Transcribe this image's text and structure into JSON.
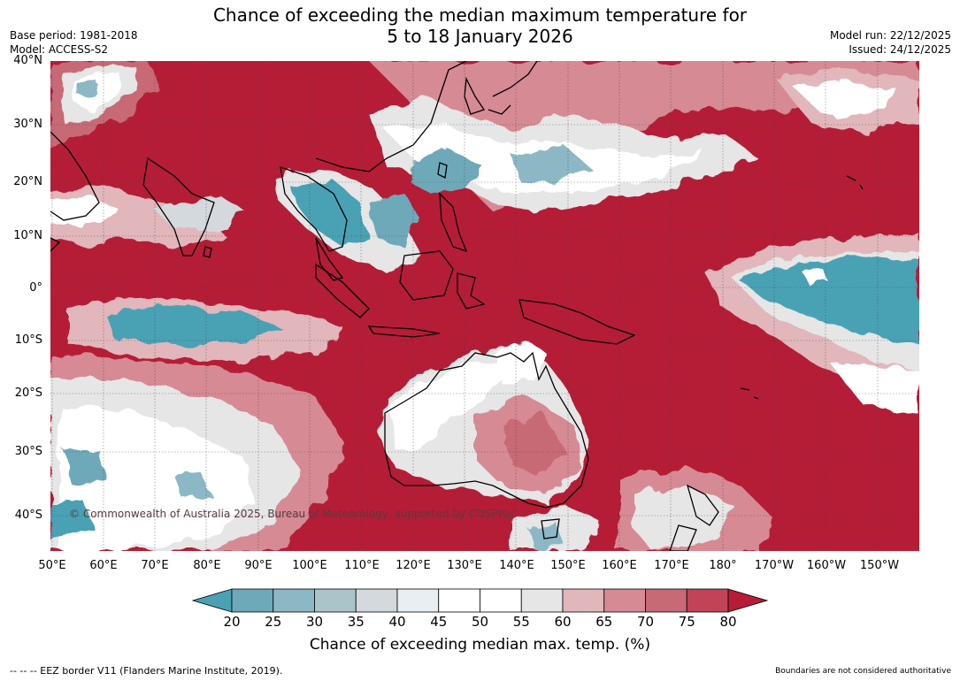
{
  "title_line1": "Chance of exceeding the median maximum temperature for",
  "title_line2": "5 to 18 January 2026",
  "base_period": "Base period: 1981-2018",
  "model": "Model: ACCESS-S2",
  "model_run": "Model run: 22/12/2025",
  "issued": "Issued: 24/12/2025",
  "lat_labels": [
    "40°N",
    "30°N",
    "20°N",
    "10°N",
    "0°",
    "10°S",
    "20°S",
    "30°S",
    "40°S"
  ],
  "lon_labels": [
    "50°E",
    "60°E",
    "70°E",
    "80°E",
    "90°E",
    "100°E",
    "110°E",
    "120°E",
    "130°E",
    "140°E",
    "150°E",
    "160°E",
    "170°E",
    "180°",
    "170°W",
    "160°W",
    "150°W"
  ],
  "copyright": "© Commonwealth of Australia 2025, Bureau of Meteorology, supported by COSPPac",
  "colorbar": {
    "ticks": [
      "20",
      "25",
      "30",
      "35",
      "40",
      "45",
      "50",
      "55",
      "60",
      "65",
      "70",
      "75",
      "80"
    ],
    "colors": [
      "#4aa1b4",
      "#6ea9b9",
      "#8bb8c4",
      "#aac5ca",
      "#d3d9dc",
      "#e9eef2",
      "#ffffff",
      "#ffffff",
      "#e6e6e6",
      "#e2b7bc",
      "#d68a93",
      "#c86a75",
      "#c04455",
      "#b51c36"
    ],
    "label": "Chance of exceeding median max. temp. (%)"
  },
  "footer_left": "--  --  -- EEZ border V11 (Flanders Marine Institute, 2019).",
  "footer_right": "Boundaries are not considered authoritative"
}
